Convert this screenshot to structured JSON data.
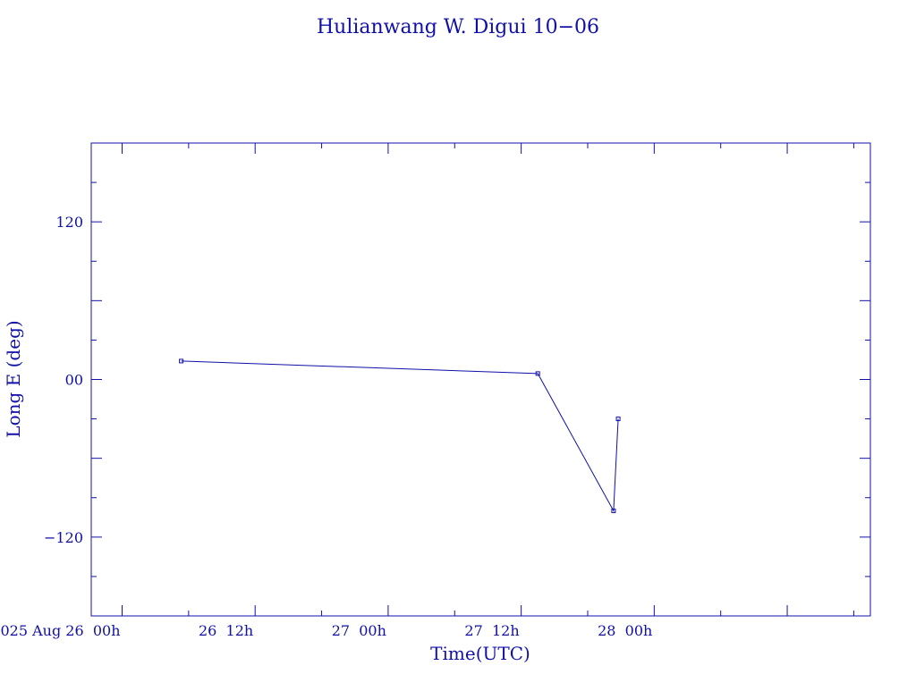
{
  "chart_data": {
    "type": "line",
    "title": "Hulianwang W. Digui 10−06",
    "xlabel": "Time(UTC)",
    "ylabel": "Long E (deg)",
    "x_unit": "UTC datetime",
    "xlim": [
      "2025-08-25T21:13",
      "2025-08-28T19:30"
    ],
    "ylim": [
      -180,
      180
    ],
    "grid": false,
    "x_ticks": [
      {
        "value": "2025-08-26T00:00",
        "label": "2025 Aug 26  00h"
      },
      {
        "value": "2025-08-26T12:00",
        "label": "26  12h"
      },
      {
        "value": "2025-08-27T00:00",
        "label": "27  00h"
      },
      {
        "value": "2025-08-27T12:00",
        "label": "27  12h"
      },
      {
        "value": "2025-08-28T00:00",
        "label": "28  00h"
      }
    ],
    "y_ticks": [
      {
        "value": 120,
        "label": "120"
      },
      {
        "value": 0,
        "label": "00"
      },
      {
        "value": -120,
        "label": "−120"
      }
    ],
    "series": [
      {
        "points": [
          {
            "x": "2025-08-26T05:20",
            "y": 14
          },
          {
            "x": "2025-08-27T13:30",
            "y": 4.5
          },
          {
            "x": "2025-08-27T20:20",
            "y": -100
          },
          {
            "x": "2025-08-27T20:45",
            "y": -30
          }
        ]
      }
    ],
    "color": "#1010a8"
  }
}
